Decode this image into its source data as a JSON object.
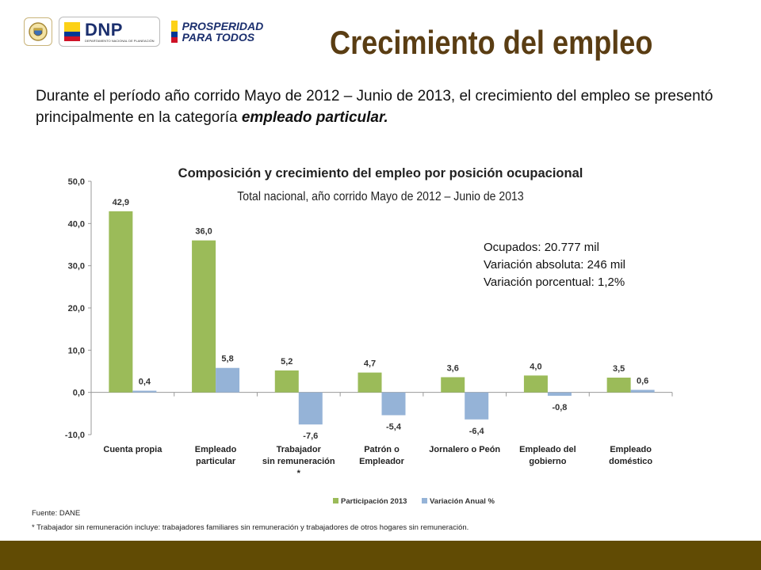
{
  "header": {
    "logo_dnp_text": "DNP",
    "logo_dnp_subtext": "DEPARTAMENTO NACIONAL DE PLANEACIÓN",
    "logo_prosperidad_line1": "PROSPERIDAD",
    "logo_prosperidad_line2": "PARA TODOS",
    "title": "Crecimiento del empleo"
  },
  "intro": {
    "text": "Durante el período año corrido  Mayo de 2012 – Junio  de 2013, el crecimiento del empleo se presentó principalmente en la categoría ",
    "emphasis": "empleado particular."
  },
  "colors": {
    "title": "#5a3d13",
    "series1": "#9bbb59",
    "series2": "#95b3d7",
    "footer": "#614b04"
  },
  "chart_data": {
    "type": "bar",
    "title": "Composición y crecimiento del empleo por posición ocupacional",
    "subtitle": "Total nacional, año corrido  Mayo de 2012 – Junio  de 2013",
    "categories": [
      [
        "Cuenta propia"
      ],
      [
        "Empleado",
        "particular"
      ],
      [
        "Trabajador",
        "sin remuneración",
        "*"
      ],
      [
        "Patrón o",
        "Empleador"
      ],
      [
        "Jornalero o Peón"
      ],
      [
        "Empleado del",
        "gobierno"
      ],
      [
        "Empleado",
        "doméstico"
      ]
    ],
    "series": [
      {
        "name": "Participación 2013",
        "values": [
          42.9,
          36.0,
          5.2,
          4.7,
          3.6,
          4.0,
          3.5
        ],
        "labels": [
          "42,9",
          "36,0",
          "5,2",
          "4,7",
          "3,6",
          "4,0",
          "3,5"
        ]
      },
      {
        "name": "Variación Anual %",
        "values": [
          0.4,
          5.8,
          -7.6,
          -5.4,
          -6.4,
          -0.8,
          0.6
        ],
        "labels": [
          "0,4",
          "5,8",
          "-7,6",
          "-5,4",
          "-6,4",
          "-0,8",
          "0,6"
        ]
      }
    ],
    "ylim": [
      -10,
      50
    ],
    "yticks": [
      50,
      40,
      30,
      20,
      10,
      0,
      -10
    ],
    "ytick_labels": [
      "50,0",
      "40,0",
      "30,0",
      "20,0",
      "10,0",
      "0,0",
      "-10,0"
    ],
    "legend_position": "bottom",
    "annotations": [
      "Ocupados: 20.777 mil",
      "Variación absoluta: 246 mil",
      "Variación porcentual:  1,2%"
    ]
  },
  "notes": {
    "source": "Fuente: DANE",
    "footnote": "* Trabajador sin remuneración incluye: trabajadores familiares sin remuneración y trabajadores de otros hogares sin remuneración."
  }
}
